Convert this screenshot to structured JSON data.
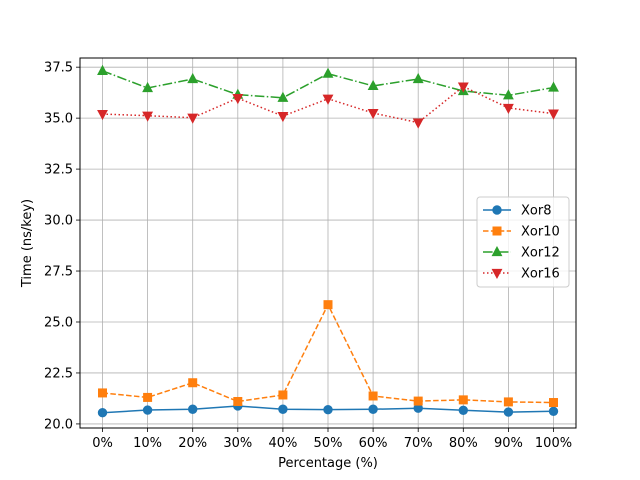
{
  "chart_data": {
    "type": "line",
    "title": "",
    "xlabel": "Percentage (%)",
    "ylabel": "Time (ns/key)",
    "categories": [
      "0%",
      "10%",
      "20%",
      "30%",
      "40%",
      "50%",
      "60%",
      "70%",
      "80%",
      "90%",
      "100%"
    ],
    "ylim": [
      19.8,
      37.95
    ],
    "yticks": [
      "20.0",
      "22.5",
      "25.0",
      "27.5",
      "30.0",
      "32.5",
      "35.0",
      "37.5"
    ],
    "grid": true,
    "legend": "center-right",
    "series": [
      {
        "name": "Xor8",
        "color": "#1f77b4",
        "marker": "circle",
        "linestyle": "solid",
        "values": [
          20.55,
          20.68,
          20.72,
          20.88,
          20.72,
          20.7,
          20.72,
          20.77,
          20.67,
          20.58,
          20.62
        ]
      },
      {
        "name": "Xor10",
        "color": "#ff7f0e",
        "marker": "square",
        "linestyle": "dashed",
        "values": [
          21.52,
          21.3,
          22.02,
          21.1,
          21.42,
          25.85,
          21.37,
          21.12,
          21.18,
          21.08,
          21.05
        ]
      },
      {
        "name": "Xor12",
        "color": "#2ca02c",
        "marker": "triangle-up",
        "linestyle": "dashdot",
        "values": [
          37.32,
          36.48,
          36.92,
          36.15,
          36.0,
          37.18,
          36.58,
          36.92,
          36.33,
          36.12,
          36.5
        ]
      },
      {
        "name": "Xor16",
        "color": "#d62728",
        "marker": "triangle-down",
        "linestyle": "dotted",
        "values": [
          35.2,
          35.12,
          35.02,
          35.98,
          35.1,
          35.95,
          35.25,
          34.78,
          36.55,
          35.5,
          35.22
        ]
      }
    ]
  }
}
